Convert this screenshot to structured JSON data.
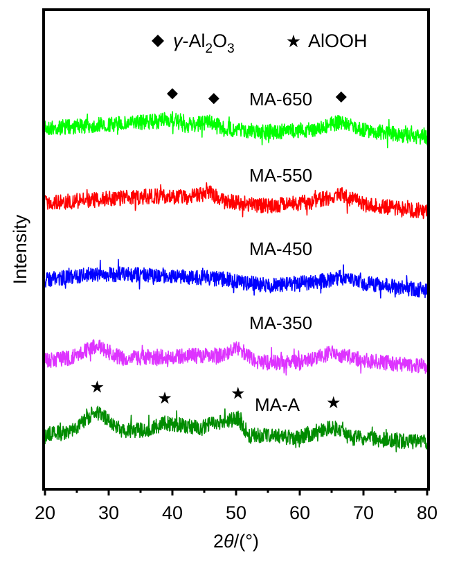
{
  "chart_data": {
    "type": "line",
    "title": "",
    "xlabel": "2θ/(°)",
    "xlabel_parts": {
      "prefix": "2",
      "theta": "θ",
      "suffix": "/(°)"
    },
    "ylabel": "Intensity",
    "xlim": [
      20,
      80
    ],
    "x_ticks": [
      20,
      30,
      40,
      50,
      60,
      70,
      80
    ],
    "x_minor_ticks": [
      25,
      35,
      45,
      55,
      65,
      75
    ],
    "y_ticks": [],
    "grid": false,
    "stacked_offset": true,
    "legend": {
      "placement": "top-center",
      "entries": [
        {
          "marker": "diamond",
          "label": "γ-Al2O3",
          "label_parts": {
            "gamma": "γ",
            "main": "-Al",
            "sub1": "2",
            "o": "O",
            "sub2": "3"
          }
        },
        {
          "marker": "star",
          "label": "AlOOH"
        }
      ]
    },
    "series": [
      {
        "name": "MA-650",
        "color": "#00ff00",
        "baseline": 0.0,
        "profile": [
          [
            20,
            0.25
          ],
          [
            28,
            0.32
          ],
          [
            38,
            0.42
          ],
          [
            40,
            0.48
          ],
          [
            42,
            0.3
          ],
          [
            46,
            0.4
          ],
          [
            48,
            0.25
          ],
          [
            55,
            0.15
          ],
          [
            62,
            0.22
          ],
          [
            66.5,
            0.4
          ],
          [
            70,
            0.2
          ],
          [
            80,
            0.02
          ]
        ],
        "markers": [
          {
            "type": "diamond",
            "x": 40
          },
          {
            "type": "diamond",
            "x": 46.5
          },
          {
            "type": "diamond",
            "x": 66.5
          }
        ]
      },
      {
        "name": "MA-550",
        "color": "#ff0000",
        "baseline": 0.0,
        "profile": [
          [
            20,
            0.25
          ],
          [
            30,
            0.35
          ],
          [
            38,
            0.42
          ],
          [
            42,
            0.38
          ],
          [
            46,
            0.48
          ],
          [
            48,
            0.3
          ],
          [
            55,
            0.18
          ],
          [
            62,
            0.28
          ],
          [
            66.5,
            0.45
          ],
          [
            70,
            0.22
          ],
          [
            80,
            0.05
          ]
        ],
        "markers": []
      },
      {
        "name": "MA-450",
        "color": "#0000ff",
        "baseline": 0.0,
        "profile": [
          [
            20,
            0.3
          ],
          [
            28,
            0.45
          ],
          [
            38,
            0.42
          ],
          [
            45,
            0.35
          ],
          [
            48,
            0.3
          ],
          [
            55,
            0.15
          ],
          [
            62,
            0.22
          ],
          [
            66.5,
            0.35
          ],
          [
            70,
            0.2
          ],
          [
            80,
            0.02
          ]
        ],
        "markers": []
      },
      {
        "name": "MA-350",
        "color": "#dd33ff",
        "baseline": 0.0,
        "profile": [
          [
            20,
            0.2
          ],
          [
            24,
            0.25
          ],
          [
            28,
            0.55
          ],
          [
            32,
            0.25
          ],
          [
            40,
            0.3
          ],
          [
            48,
            0.32
          ],
          [
            50.5,
            0.5
          ],
          [
            53,
            0.15
          ],
          [
            60,
            0.15
          ],
          [
            65,
            0.38
          ],
          [
            70,
            0.2
          ],
          [
            80,
            0.05
          ]
        ],
        "markers": []
      },
      {
        "name": "MA-A",
        "color": "#008c00",
        "baseline": 0.0,
        "profile": [
          [
            20,
            0.22
          ],
          [
            24,
            0.28
          ],
          [
            28,
            0.7
          ],
          [
            32,
            0.3
          ],
          [
            36,
            0.3
          ],
          [
            38.8,
            0.45
          ],
          [
            44,
            0.35
          ],
          [
            50.3,
            0.55
          ],
          [
            52,
            0.2
          ],
          [
            60,
            0.15
          ],
          [
            65,
            0.38
          ],
          [
            68,
            0.15
          ],
          [
            80,
            0.05
          ]
        ],
        "markers": [
          {
            "type": "star",
            "x": 28.2
          },
          {
            "type": "star",
            "x": 38.8
          },
          {
            "type": "star",
            "x": 50.3
          },
          {
            "type": "star",
            "x": 65.3
          }
        ]
      }
    ]
  }
}
